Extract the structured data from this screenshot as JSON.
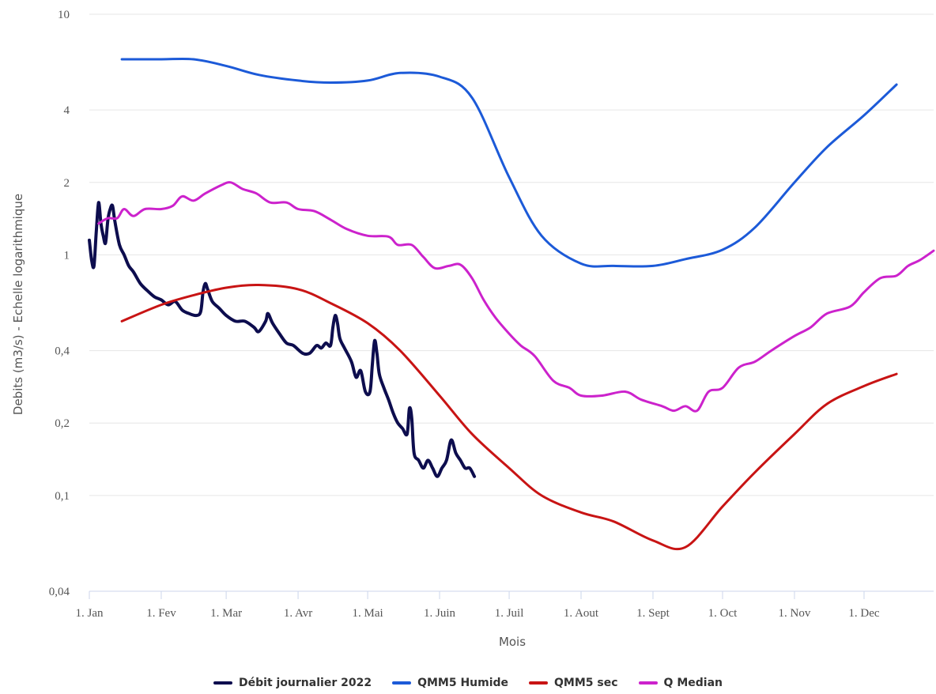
{
  "chart_data": {
    "type": "line",
    "xlabel": "Mois",
    "ylabel": "Debits (m3/s) - Echelle logarithmique",
    "yscale": "log",
    "ylim": [
      0.04,
      10
    ],
    "xlim": [
      "2022-01-01",
      "2022-12-31"
    ],
    "grid": true,
    "legend_position": "bottom",
    "y_ticks": [
      {
        "value": 0.04,
        "label": "0,04"
      },
      {
        "value": 0.1,
        "label": "0,1"
      },
      {
        "value": 0.2,
        "label": "0,2"
      },
      {
        "value": 0.4,
        "label": "0,4"
      },
      {
        "value": 1,
        "label": "1"
      },
      {
        "value": 2,
        "label": "2"
      },
      {
        "value": 4,
        "label": "4"
      },
      {
        "value": 10,
        "label": "10"
      }
    ],
    "x_ticks": [
      {
        "date": "2022-01-01",
        "label": "1. Jan"
      },
      {
        "date": "2022-02-01",
        "label": "1. Fev"
      },
      {
        "date": "2022-03-01",
        "label": "1. Mar"
      },
      {
        "date": "2022-04-01",
        "label": "1. Avr"
      },
      {
        "date": "2022-05-01",
        "label": "1. Mai"
      },
      {
        "date": "2022-06-01",
        "label": "1. Juin"
      },
      {
        "date": "2022-07-01",
        "label": "1. Juil"
      },
      {
        "date": "2022-08-01",
        "label": "1. Aout"
      },
      {
        "date": "2022-09-01",
        "label": "1. Sept"
      },
      {
        "date": "2022-10-01",
        "label": "1. Oct"
      },
      {
        "date": "2022-11-01",
        "label": "1. Nov"
      },
      {
        "date": "2022-12-01",
        "label": "1. Dec"
      }
    ],
    "series": [
      {
        "name": "Débit journalier 2022",
        "color": "#0d0d4e",
        "points": [
          [
            "2022-01-01",
            1.15
          ],
          [
            "2022-01-02",
            0.95
          ],
          [
            "2022-01-03",
            0.9
          ],
          [
            "2022-01-04",
            1.25
          ],
          [
            "2022-01-05",
            1.65
          ],
          [
            "2022-01-06",
            1.35
          ],
          [
            "2022-01-07",
            1.2
          ],
          [
            "2022-01-08",
            1.12
          ],
          [
            "2022-01-09",
            1.4
          ],
          [
            "2022-01-10",
            1.55
          ],
          [
            "2022-01-11",
            1.6
          ],
          [
            "2022-01-12",
            1.38
          ],
          [
            "2022-01-14",
            1.1
          ],
          [
            "2022-01-16",
            1.0
          ],
          [
            "2022-01-18",
            0.9
          ],
          [
            "2022-01-20",
            0.85
          ],
          [
            "2022-01-23",
            0.76
          ],
          [
            "2022-01-26",
            0.71
          ],
          [
            "2022-01-29",
            0.67
          ],
          [
            "2022-02-01",
            0.65
          ],
          [
            "2022-02-04",
            0.62
          ],
          [
            "2022-02-07",
            0.64
          ],
          [
            "2022-02-10",
            0.59
          ],
          [
            "2022-02-13",
            0.57
          ],
          [
            "2022-02-16",
            0.56
          ],
          [
            "2022-02-18",
            0.58
          ],
          [
            "2022-02-19",
            0.7
          ],
          [
            "2022-02-20",
            0.76
          ],
          [
            "2022-02-21",
            0.72
          ],
          [
            "2022-02-23",
            0.64
          ],
          [
            "2022-02-26",
            0.6
          ],
          [
            "2022-03-01",
            0.56
          ],
          [
            "2022-03-05",
            0.53
          ],
          [
            "2022-03-09",
            0.53
          ],
          [
            "2022-03-13",
            0.5
          ],
          [
            "2022-03-15",
            0.48
          ],
          [
            "2022-03-18",
            0.53
          ],
          [
            "2022-03-19",
            0.57
          ],
          [
            "2022-03-21",
            0.52
          ],
          [
            "2022-03-24",
            0.47
          ],
          [
            "2022-03-27",
            0.43
          ],
          [
            "2022-03-30",
            0.42
          ],
          [
            "2022-04-03",
            0.39
          ],
          [
            "2022-04-06",
            0.39
          ],
          [
            "2022-04-09",
            0.42
          ],
          [
            "2022-04-11",
            0.41
          ],
          [
            "2022-04-13",
            0.43
          ],
          [
            "2022-04-15",
            0.42
          ],
          [
            "2022-04-16",
            0.5
          ],
          [
            "2022-04-17",
            0.56
          ],
          [
            "2022-04-18",
            0.52
          ],
          [
            "2022-04-19",
            0.45
          ],
          [
            "2022-04-21",
            0.41
          ],
          [
            "2022-04-24",
            0.36
          ],
          [
            "2022-04-26",
            0.31
          ],
          [
            "2022-04-28",
            0.33
          ],
          [
            "2022-04-30",
            0.27
          ],
          [
            "2022-05-02",
            0.27
          ],
          [
            "2022-05-03",
            0.35
          ],
          [
            "2022-05-04",
            0.44
          ],
          [
            "2022-05-05",
            0.39
          ],
          [
            "2022-05-06",
            0.32
          ],
          [
            "2022-05-08",
            0.28
          ],
          [
            "2022-05-10",
            0.25
          ],
          [
            "2022-05-12",
            0.22
          ],
          [
            "2022-05-14",
            0.2
          ],
          [
            "2022-05-16",
            0.19
          ],
          [
            "2022-05-18",
            0.18
          ],
          [
            "2022-05-19",
            0.23
          ],
          [
            "2022-05-20",
            0.21
          ],
          [
            "2022-05-21",
            0.15
          ],
          [
            "2022-05-23",
            0.14
          ],
          [
            "2022-05-25",
            0.13
          ],
          [
            "2022-05-27",
            0.14
          ],
          [
            "2022-05-29",
            0.13
          ],
          [
            "2022-05-31",
            0.12
          ],
          [
            "2022-06-02",
            0.13
          ],
          [
            "2022-06-04",
            0.14
          ],
          [
            "2022-06-06",
            0.17
          ],
          [
            "2022-06-08",
            0.15
          ],
          [
            "2022-06-10",
            0.14
          ],
          [
            "2022-06-12",
            0.13
          ],
          [
            "2022-06-14",
            0.13
          ],
          [
            "2022-06-16",
            0.12
          ]
        ]
      },
      {
        "name": "QMM5 Humide",
        "color": "#1c5ad8",
        "points": [
          [
            "2022-01-15",
            6.5
          ],
          [
            "2022-02-01",
            6.5
          ],
          [
            "2022-02-15",
            6.5
          ],
          [
            "2022-03-01",
            6.1
          ],
          [
            "2022-03-15",
            5.6
          ],
          [
            "2022-04-01",
            5.3
          ],
          [
            "2022-04-15",
            5.2
          ],
          [
            "2022-05-01",
            5.3
          ],
          [
            "2022-05-15",
            5.7
          ],
          [
            "2022-06-01",
            5.5
          ],
          [
            "2022-06-15",
            4.5
          ],
          [
            "2022-07-01",
            2.1
          ],
          [
            "2022-07-15",
            1.2
          ],
          [
            "2022-08-01",
            0.92
          ],
          [
            "2022-08-15",
            0.9
          ],
          [
            "2022-09-01",
            0.9
          ],
          [
            "2022-09-15",
            0.96
          ],
          [
            "2022-10-01",
            1.05
          ],
          [
            "2022-10-15",
            1.3
          ],
          [
            "2022-11-01",
            2.0
          ],
          [
            "2022-11-15",
            2.8
          ],
          [
            "2022-12-01",
            3.8
          ],
          [
            "2022-12-15",
            5.1
          ]
        ]
      },
      {
        "name": "QMM5 sec",
        "color": "#c81414",
        "points": [
          [
            "2022-01-15",
            0.53
          ],
          [
            "2022-02-01",
            0.62
          ],
          [
            "2022-02-15",
            0.68
          ],
          [
            "2022-03-01",
            0.73
          ],
          [
            "2022-03-15",
            0.75
          ],
          [
            "2022-04-01",
            0.72
          ],
          [
            "2022-04-15",
            0.63
          ],
          [
            "2022-05-01",
            0.52
          ],
          [
            "2022-05-15",
            0.4
          ],
          [
            "2022-06-01",
            0.26
          ],
          [
            "2022-06-15",
            0.18
          ],
          [
            "2022-07-01",
            0.13
          ],
          [
            "2022-07-15",
            0.1
          ],
          [
            "2022-08-01",
            0.085
          ],
          [
            "2022-08-15",
            0.078
          ],
          [
            "2022-09-01",
            0.065
          ],
          [
            "2022-09-15",
            0.061
          ],
          [
            "2022-10-01",
            0.09
          ],
          [
            "2022-10-15",
            0.125
          ],
          [
            "2022-11-01",
            0.18
          ],
          [
            "2022-11-15",
            0.24
          ],
          [
            "2022-12-01",
            0.285
          ],
          [
            "2022-12-15",
            0.32
          ]
        ]
      },
      {
        "name": "Q Median",
        "color": "#cc22cc",
        "points": [
          [
            "2022-01-05",
            1.35
          ],
          [
            "2022-01-09",
            1.42
          ],
          [
            "2022-01-13",
            1.42
          ],
          [
            "2022-01-16",
            1.55
          ],
          [
            "2022-01-20",
            1.45
          ],
          [
            "2022-01-25",
            1.55
          ],
          [
            "2022-02-01",
            1.55
          ],
          [
            "2022-02-06",
            1.6
          ],
          [
            "2022-02-10",
            1.75
          ],
          [
            "2022-02-15",
            1.68
          ],
          [
            "2022-02-20",
            1.8
          ],
          [
            "2022-02-27",
            1.95
          ],
          [
            "2022-03-03",
            2.0
          ],
          [
            "2022-03-08",
            1.88
          ],
          [
            "2022-03-14",
            1.8
          ],
          [
            "2022-03-20",
            1.65
          ],
          [
            "2022-03-27",
            1.65
          ],
          [
            "2022-04-01",
            1.55
          ],
          [
            "2022-04-08",
            1.52
          ],
          [
            "2022-04-15",
            1.4
          ],
          [
            "2022-04-22",
            1.28
          ],
          [
            "2022-05-01",
            1.2
          ],
          [
            "2022-05-10",
            1.19
          ],
          [
            "2022-05-14",
            1.1
          ],
          [
            "2022-05-20",
            1.1
          ],
          [
            "2022-05-25",
            0.98
          ],
          [
            "2022-05-30",
            0.88
          ],
          [
            "2022-06-05",
            0.9
          ],
          [
            "2022-06-10",
            0.91
          ],
          [
            "2022-06-15",
            0.8
          ],
          [
            "2022-06-20",
            0.65
          ],
          [
            "2022-06-25",
            0.55
          ],
          [
            "2022-07-01",
            0.47
          ],
          [
            "2022-07-06",
            0.42
          ],
          [
            "2022-07-12",
            0.38
          ],
          [
            "2022-07-20",
            0.3
          ],
          [
            "2022-07-27",
            0.28
          ],
          [
            "2022-08-01",
            0.26
          ],
          [
            "2022-08-10",
            0.26
          ],
          [
            "2022-08-20",
            0.27
          ],
          [
            "2022-08-27",
            0.25
          ],
          [
            "2022-09-05",
            0.235
          ],
          [
            "2022-09-10",
            0.225
          ],
          [
            "2022-09-15",
            0.235
          ],
          [
            "2022-09-20",
            0.225
          ],
          [
            "2022-09-25",
            0.27
          ],
          [
            "2022-10-01",
            0.28
          ],
          [
            "2022-10-08",
            0.34
          ],
          [
            "2022-10-15",
            0.36
          ],
          [
            "2022-10-22",
            0.4
          ],
          [
            "2022-11-01",
            0.46
          ],
          [
            "2022-11-08",
            0.5
          ],
          [
            "2022-11-15",
            0.57
          ],
          [
            "2022-11-25",
            0.61
          ],
          [
            "2022-12-01",
            0.7
          ],
          [
            "2022-12-08",
            0.8
          ],
          [
            "2022-12-15",
            0.82
          ],
          [
            "2022-12-20",
            0.9
          ],
          [
            "2022-12-25",
            0.95
          ],
          [
            "2022-12-31",
            1.04
          ]
        ]
      }
    ]
  }
}
